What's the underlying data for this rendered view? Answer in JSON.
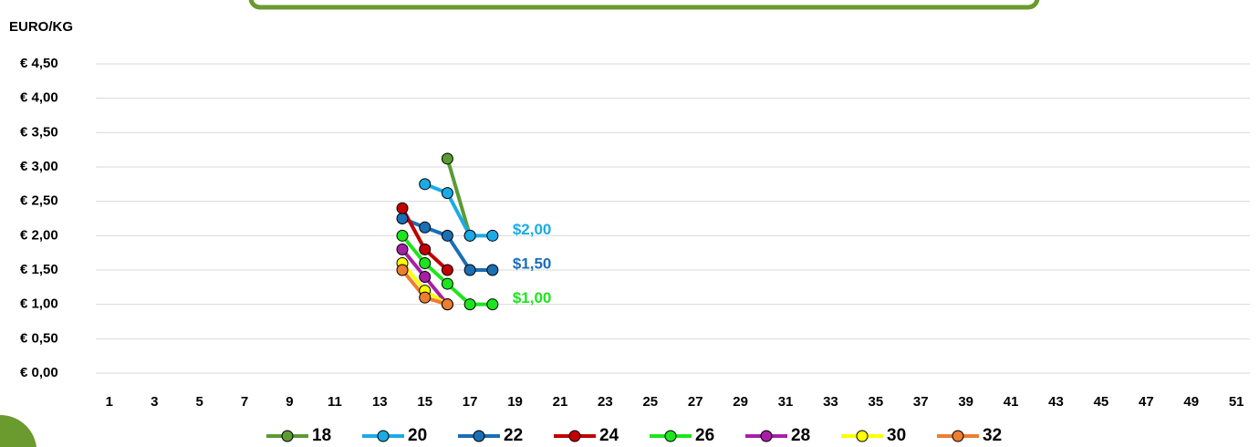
{
  "chart_data": {
    "type": "line",
    "y_label": "EURO/KG",
    "x": [
      14,
      15,
      16,
      17,
      18
    ],
    "xlim": [
      0.4,
      51.6
    ],
    "xticks": [
      1,
      3,
      5,
      7,
      9,
      11,
      13,
      15,
      17,
      19,
      21,
      23,
      25,
      27,
      29,
      31,
      33,
      35,
      37,
      39,
      41,
      43,
      45,
      47,
      49,
      51
    ],
    "ylim": [
      0,
      4.5
    ],
    "yticks": [
      {
        "value": 0,
        "label": "€ 0,00"
      },
      {
        "value": 0.5,
        "label": "€ 0,50"
      },
      {
        "value": 1,
        "label": "€ 1,00"
      },
      {
        "value": 1.5,
        "label": "€ 1,50"
      },
      {
        "value": 2,
        "label": "€ 2,00"
      },
      {
        "value": 2.5,
        "label": "€ 2,50"
      },
      {
        "value": 3,
        "label": "€ 3,00"
      },
      {
        "value": 3.5,
        "label": "€ 3,50"
      },
      {
        "value": 4,
        "label": "€ 4,00"
      },
      {
        "value": 4.5,
        "label": "€ 4,50"
      }
    ],
    "grid": true,
    "legend": "bottom",
    "series": [
      {
        "name": "18",
        "color": "#5b9a35",
        "values": [
          null,
          null,
          3.12,
          2.0,
          null
        ]
      },
      {
        "name": "20",
        "color": "#1aabe6",
        "values": [
          null,
          2.75,
          2.62,
          2.0,
          2.0
        ]
      },
      {
        "name": "22",
        "color": "#1a6fb5",
        "values": [
          2.25,
          2.12,
          2.0,
          1.5,
          1.5
        ]
      },
      {
        "name": "24",
        "color": "#c00000",
        "values": [
          2.4,
          1.8,
          1.5,
          null,
          null
        ]
      },
      {
        "name": "26",
        "color": "#1de51d",
        "values": [
          2.0,
          1.6,
          1.3,
          1.0,
          1.0
        ]
      },
      {
        "name": "28",
        "color": "#a620a6",
        "values": [
          1.8,
          1.4,
          1.0,
          null,
          null
        ]
      },
      {
        "name": "30",
        "color": "#ffff00",
        "values": [
          1.6,
          1.2,
          1.0,
          null,
          null
        ]
      },
      {
        "name": "32",
        "color": "#ed7d31",
        "values": [
          1.5,
          1.1,
          1.0,
          null,
          null
        ]
      }
    ],
    "annotations": [
      {
        "text": "$2,00",
        "x": 18,
        "y": 2.0,
        "color": "#1aabe6"
      },
      {
        "text": "$1,50",
        "x": 18,
        "y": 1.5,
        "color": "#1a6fb5"
      },
      {
        "text": "$1,00",
        "x": 18,
        "y": 1.0,
        "color": "#1de51d"
      }
    ]
  }
}
